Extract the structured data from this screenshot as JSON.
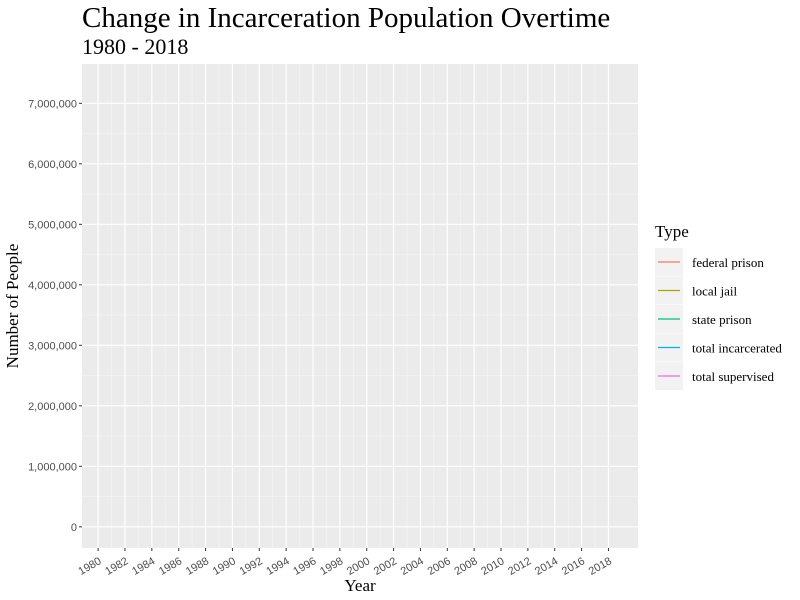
{
  "chart_data": {
    "type": "line",
    "title": "Change in Incarceration Population Overtime",
    "subtitle": "1980 - 2018",
    "xlabel": "Year",
    "ylabel": "Number of People",
    "x_ticks": [
      "1980",
      "1982",
      "1984",
      "1986",
      "1988",
      "1990",
      "1992",
      "1994",
      "1996",
      "1998",
      "2000",
      "2002",
      "2004",
      "2006",
      "2008",
      "2010",
      "2012",
      "2014",
      "2016",
      "2018"
    ],
    "y_ticks": [
      {
        "value": 0,
        "label": "0"
      },
      {
        "value": 1000000,
        "label": "1,000,000"
      },
      {
        "value": 2000000,
        "label": "2,000,000"
      },
      {
        "value": 3000000,
        "label": "3,000,000"
      },
      {
        "value": 4000000,
        "label": "4,000,000"
      },
      {
        "value": 5000000,
        "label": "5,000,000"
      },
      {
        "value": 6000000,
        "label": "6,000,000"
      },
      {
        "value": 7000000,
        "label": "7,000,000"
      }
    ],
    "xlim": [
      1978.8,
      2020.2
    ],
    "ylim": [
      -350000,
      7650000
    ],
    "grid": true,
    "legend_title": "Type",
    "legend_position": "right",
    "series": [
      {
        "name": "federal prison",
        "color": "#F8766D",
        "values": []
      },
      {
        "name": "local jail",
        "color": "#A3A500",
        "values": []
      },
      {
        "name": "state prison",
        "color": "#00BF7D",
        "values": []
      },
      {
        "name": "total incarcerated",
        "color": "#00B0F6",
        "values": []
      },
      {
        "name": "total supervised",
        "color": "#E76BF3",
        "values": []
      }
    ]
  }
}
